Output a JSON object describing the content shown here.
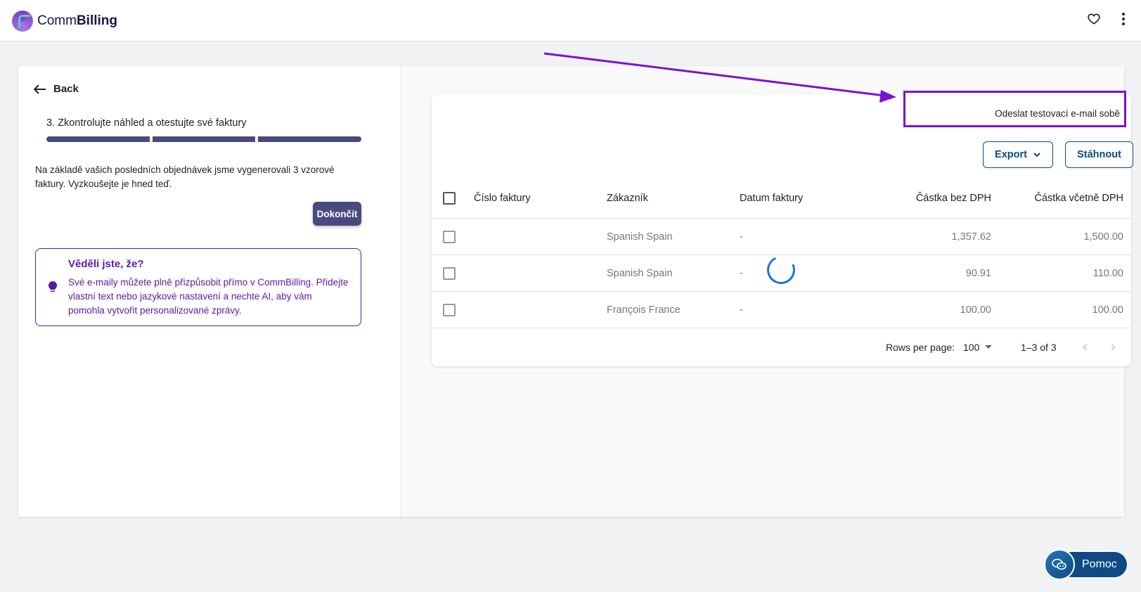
{
  "header": {
    "brand_light": "Comm",
    "brand_bold": "Billing",
    "favorite_icon": "heart-icon",
    "menu_icon": "more-vert-icon"
  },
  "left": {
    "back_label": "Back",
    "step_title": "3. Zkontrolujte náhled a otestujte své faktury",
    "progress_steps_complete": 3,
    "progress_steps_total": 3,
    "description": "Na základě vašich posledních objednávek jsme vygenerovali 3 vzorové faktury. Vyzkoušejte je hned teď.",
    "finish_label": "Dokončit",
    "tip": {
      "title": "Věděli jste, že?",
      "text": "Své e-maily můžete plně přizpůsobit přímo v CommBilling. Přidejte vlastní text nebo jazykové nastavení a nechte AI, aby vám pomohla vytvořit personalizované zprávy."
    }
  },
  "table": {
    "send_test_label": "Odeslat testovací e-mail sobě",
    "export_label": "Export",
    "download_label": "Stáhnout",
    "columns": [
      "Číslo faktury",
      "Zákazník",
      "Datum faktury",
      "Částka bez DPH",
      "Částka včetně DPH"
    ],
    "rows": [
      {
        "number": "",
        "customer": "Spanish Spain",
        "date": "-",
        "net": "1,357.62",
        "gross": "1,500.00"
      },
      {
        "number": "",
        "customer": "Spanish Spain",
        "date": "-",
        "net": "90.91",
        "gross": "110.00"
      },
      {
        "number": "",
        "customer": "François France",
        "date": "-",
        "net": "100.00",
        "gross": "100.00"
      }
    ],
    "rows_per_page_label": "Rows per page:",
    "rows_per_page": "100",
    "range": "1–3 of 3"
  },
  "help": {
    "label": "Pomoc"
  },
  "colors": {
    "primary": "#4a4a80",
    "accent": "#5a1aa8",
    "highlight": "#7a12d4",
    "link": "#0d4a80"
  }
}
